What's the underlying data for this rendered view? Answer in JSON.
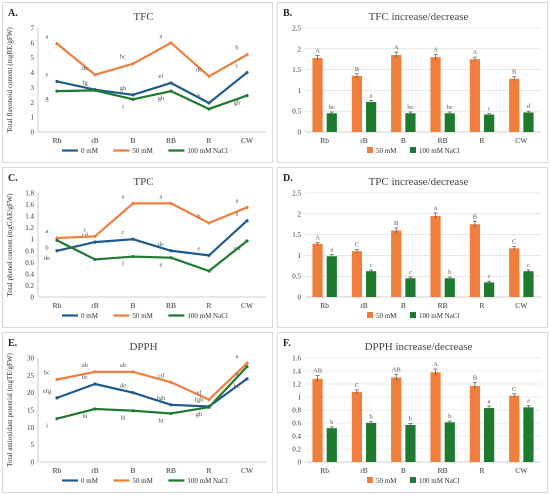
{
  "colors": {
    "c0": "#1f5c8c",
    "c50": "#f07f3c",
    "c100": "#1e7a2e",
    "grid": "#d9d9d9",
    "axis": "#bfbfbf",
    "text": "#333333"
  },
  "chart_data": [
    {
      "panel": "A.",
      "type": "line",
      "title": "TFC",
      "ylabel": "Total flavonoid content (mgRE/gFW)",
      "ylim": [
        0,
        7
      ],
      "yticks": [
        0,
        1,
        2,
        3,
        4,
        5,
        6,
        7
      ],
      "categories": [
        "Rb",
        "rB",
        "B",
        "RB",
        "R",
        "CW"
      ],
      "series": [
        {
          "name": "0 mM",
          "values": [
            3.4,
            2.85,
            2.5,
            3.3,
            1.95,
            4.0
          ],
          "letters": [
            "e",
            "fg",
            "gh",
            "ef",
            "h",
            "c"
          ]
        },
        {
          "name": "50 mM",
          "values": [
            5.95,
            3.85,
            4.6,
            6.0,
            3.75,
            5.2
          ],
          "letters": [
            "a",
            "de",
            "bc",
            "a",
            "de",
            "b"
          ]
        },
        {
          "name": "100 mM NaCl",
          "values": [
            2.75,
            2.8,
            2.2,
            2.75,
            1.55,
            2.45
          ],
          "letters": [
            "g",
            "",
            "i",
            "gh",
            "",
            "gh"
          ]
        }
      ]
    },
    {
      "panel": "B.",
      "type": "bar",
      "title": "TFC increase/decrease",
      "ylabel": "",
      "ylim": [
        0,
        2.5
      ],
      "yticks": [
        0,
        0.5,
        1,
        1.5,
        2,
        2.5
      ],
      "categories": [
        "Rb",
        "rB",
        "B",
        "RB",
        "R",
        "CW"
      ],
      "series": [
        {
          "name": "50 mM",
          "values": [
            1.78,
            1.35,
            1.85,
            1.8,
            1.75,
            1.28
          ],
          "errors": [
            0.06,
            0.05,
            0.07,
            0.06,
            0.05,
            0.05
          ],
          "letters": [
            "A",
            "B",
            "A",
            "A",
            "A",
            "B"
          ]
        },
        {
          "name": "100 mM NaCl",
          "values": [
            0.45,
            0.72,
            0.45,
            0.45,
            0.42,
            0.47
          ],
          "errors": [
            0.03,
            0.04,
            0.03,
            0.03,
            0.02,
            0.03
          ],
          "letters": [
            "bc",
            "a",
            "bc",
            "bc",
            "c",
            "d"
          ]
        }
      ]
    },
    {
      "panel": "C.",
      "type": "line",
      "title": "TPC",
      "ylabel": "Total phenol content (mgGAE/gFW)",
      "ylim": [
        0,
        1.8
      ],
      "yticks": [
        0,
        0.2,
        0.4,
        0.6,
        0.8,
        1,
        1.2,
        1.4,
        1.6,
        1.8
      ],
      "categories": [
        "Rb",
        "rB",
        "B",
        "RB",
        "R",
        "CW"
      ],
      "series": [
        {
          "name": "0 mM",
          "values": [
            0.8,
            0.95,
            1.0,
            0.8,
            0.72,
            1.32
          ],
          "letters": [
            "de",
            "cd",
            "c",
            "de",
            "e",
            "a"
          ]
        },
        {
          "name": "50 mM",
          "values": [
            1.02,
            1.05,
            1.62,
            1.62,
            1.28,
            1.55
          ],
          "letters": [
            "a",
            "c",
            "a",
            "a",
            "b",
            "a"
          ]
        },
        {
          "name": "100 mM NaCl",
          "values": [
            0.98,
            0.65,
            0.7,
            0.68,
            0.45,
            0.97
          ],
          "letters": [
            "b",
            "",
            "f",
            "e",
            "",
            "cd"
          ]
        }
      ]
    },
    {
      "panel": "D.",
      "type": "bar",
      "title": "TPC increase/decrease",
      "ylabel": "",
      "ylim": [
        0,
        2.5
      ],
      "yticks": [
        0,
        0.5,
        1,
        1.5,
        2,
        2.5
      ],
      "categories": [
        "Rb",
        "rB",
        "B",
        "RB",
        "R",
        "CW"
      ],
      "series": [
        {
          "name": "50 mM",
          "values": [
            1.28,
            1.1,
            1.6,
            1.95,
            1.75,
            1.17
          ],
          "errors": [
            0.03,
            0.04,
            0.06,
            0.07,
            0.07,
            0.04
          ],
          "letters": [
            "A",
            "C",
            "B",
            "A",
            "B",
            "C"
          ]
        },
        {
          "name": "100 mM NaCl",
          "values": [
            0.98,
            0.62,
            0.45,
            0.45,
            0.35,
            0.62
          ],
          "errors": [
            0.04,
            0.03,
            0.03,
            0.03,
            0.03,
            0.03
          ],
          "letters": [
            "a",
            "c",
            "c",
            "b",
            "c",
            "c"
          ]
        }
      ]
    },
    {
      "panel": "E.",
      "type": "line",
      "title": "DPPH",
      "ylabel": "Total antioxidant potential (mgTE/gFW)",
      "ylim": [
        0,
        30
      ],
      "yticks": [
        0,
        5,
        10,
        15,
        20,
        25,
        30
      ],
      "categories": [
        "Rb",
        "rB",
        "B",
        "RB",
        "R",
        "CW"
      ],
      "series": [
        {
          "name": "0 mM",
          "values": [
            18.5,
            22.5,
            20.0,
            16.5,
            16.0,
            24.0
          ],
          "letters": [
            "efg",
            "bc",
            "de",
            "fgh",
            "fgh",
            "bc"
          ]
        },
        {
          "name": "50 mM",
          "values": [
            23.8,
            26.0,
            26.0,
            23.0,
            18.0,
            28.5
          ],
          "letters": [
            "bc",
            "ab",
            "ab",
            "cd",
            "ef",
            "a"
          ]
        },
        {
          "name": "100 mM NaCl",
          "values": [
            12.5,
            15.3,
            14.8,
            14.0,
            15.8,
            27.5
          ],
          "letters": [
            "i",
            "hi",
            "hi",
            "hi",
            "gh",
            "a"
          ]
        }
      ]
    },
    {
      "panel": "F.",
      "type": "bar",
      "title": "DPPH increase/decrease",
      "ylabel": "",
      "ylim": [
        0,
        1.6
      ],
      "yticks": [
        0,
        0.2,
        0.4,
        0.6,
        0.8,
        1,
        1.2,
        1.4,
        1.6
      ],
      "categories": [
        "Rb",
        "rB",
        "B",
        "RB",
        "R",
        "CW"
      ],
      "series": [
        {
          "name": "50 mM",
          "values": [
            1.28,
            1.08,
            1.3,
            1.38,
            1.17,
            1.02
          ],
          "errors": [
            0.05,
            0.03,
            0.05,
            0.05,
            0.05,
            0.03
          ],
          "letters": [
            "AB",
            "C",
            "AB",
            "A",
            "B",
            "C"
          ]
        },
        {
          "name": "100 mM NaCl",
          "values": [
            0.52,
            0.6,
            0.57,
            0.61,
            0.83,
            0.84
          ],
          "errors": [
            0.02,
            0.02,
            0.02,
            0.02,
            0.03,
            0.03
          ],
          "letters": [
            "b",
            "b",
            "b",
            "b",
            "a",
            "a"
          ]
        }
      ]
    }
  ]
}
